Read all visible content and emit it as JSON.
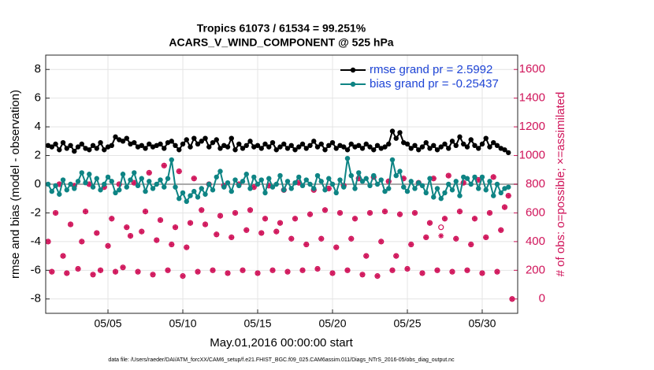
{
  "chart_data": {
    "type": "line",
    "title": "Tropics 61073 / 61534 = 99.251%",
    "subtitle": "ACARS_V_WIND_COMPONENT @ 525 hPa",
    "x_label": "May.01,2016 00:00:00 start",
    "y_label": "rmse and bias (model - observation)",
    "y2_label": "# of obs: o=possible; ×=assimilated",
    "footnote": "data file: /Users/raeder/DAI/ATM_forcXX/CAM6_setup/f.e21.FHIST_BGC.f09_025.CAM6assim.011/Diags_NTrS_2016-05/obs_diag_output.nc",
    "xlim": [
      0.84,
      32.37
    ],
    "xticks": [
      {
        "value": 5,
        "label": "05/05"
      },
      {
        "value": 10,
        "label": "05/10"
      },
      {
        "value": 15,
        "label": "05/15"
      },
      {
        "value": 20,
        "label": "05/20"
      },
      {
        "value": 25,
        "label": "05/25"
      },
      {
        "value": 30,
        "label": "05/30"
      }
    ],
    "ylim": [
      -9,
      9
    ],
    "yticks": [
      -8,
      -6,
      -4,
      -2,
      0,
      2,
      4,
      6,
      8
    ],
    "y2lim": [
      -100,
      1700
    ],
    "y2ticks": [
      0,
      200,
      400,
      600,
      800,
      1000,
      1200,
      1400,
      1600
    ],
    "grid": true,
    "legend": "northeast",
    "legend_text_color": "#1f45d6",
    "zero_line_color": "#aaaaaa",
    "y2_color": "#d0145a",
    "x": [
      1,
      1.25,
      1.5,
      1.75,
      2,
      2.25,
      2.5,
      2.75,
      3,
      3.25,
      3.5,
      3.75,
      4,
      4.25,
      4.5,
      4.75,
      5,
      5.25,
      5.5,
      5.75,
      6,
      6.25,
      6.5,
      6.75,
      7,
      7.25,
      7.5,
      7.75,
      8,
      8.25,
      8.5,
      8.75,
      9,
      9.25,
      9.5,
      9.75,
      10,
      10.25,
      10.5,
      10.75,
      11,
      11.25,
      11.5,
      11.75,
      12,
      12.25,
      12.5,
      12.75,
      13,
      13.25,
      13.5,
      13.75,
      14,
      14.25,
      14.5,
      14.75,
      15,
      15.25,
      15.5,
      15.75,
      16,
      16.25,
      16.5,
      16.75,
      17,
      17.25,
      17.5,
      17.75,
      18,
      18.25,
      18.5,
      18.75,
      19,
      19.25,
      19.5,
      19.75,
      20,
      20.25,
      20.5,
      20.75,
      21,
      21.25,
      21.5,
      21.75,
      22,
      22.25,
      22.5,
      22.75,
      23,
      23.25,
      23.5,
      23.75,
      24,
      24.25,
      24.5,
      24.75,
      25,
      25.25,
      25.5,
      25.75,
      26,
      26.25,
      26.5,
      26.75,
      27,
      27.25,
      27.5,
      27.75,
      28,
      28.25,
      28.5,
      28.75,
      29,
      29.25,
      29.5,
      29.75,
      30,
      30.25,
      30.5,
      30.75,
      31,
      31.25,
      31.5,
      31.75,
      32
    ],
    "series": [
      {
        "name": "rmse grand pr = 2.5992",
        "color": "#000000",
        "marker": "dot",
        "values": [
          2.7,
          2.6,
          2.8,
          2.4,
          2.9,
          2.5,
          2.7,
          2.3,
          2.6,
          2.8,
          2.5,
          2.4,
          2.7,
          2.5,
          2.9,
          2.4,
          2.6,
          2.7,
          3.3,
          3.1,
          3.0,
          3.2,
          2.8,
          2.9,
          2.6,
          2.7,
          2.5,
          2.8,
          2.6,
          2.7,
          2.8,
          2.5,
          2.9,
          3.0,
          2.7,
          2.4,
          2.8,
          3.1,
          2.6,
          3.2,
          2.8,
          3.0,
          3.2,
          2.6,
          2.9,
          3.1,
          2.5,
          2.7,
          2.6,
          3.2,
          2.4,
          2.8,
          2.5,
          2.7,
          3.0,
          2.6,
          2.7,
          2.5,
          2.8,
          2.6,
          2.9,
          2.4,
          2.6,
          2.8,
          2.5,
          2.7,
          2.4,
          2.6,
          2.8,
          2.5,
          2.7,
          3.0,
          2.6,
          2.8,
          2.4,
          2.7,
          2.9,
          2.5,
          2.7,
          2.6,
          2.4,
          2.8,
          2.6,
          2.7,
          2.5,
          2.8,
          2.6,
          2.4,
          2.7,
          2.5,
          2.6,
          2.8,
          3.7,
          3.2,
          3.6,
          2.9,
          2.8,
          2.5,
          2.7,
          2.4,
          2.6,
          2.9,
          2.5,
          2.7,
          2.4,
          2.6,
          2.8,
          2.5,
          3.0,
          2.7,
          3.3,
          2.8,
          2.6,
          3.1,
          2.7,
          2.5,
          2.8,
          3.2,
          2.6,
          2.9,
          2.7,
          2.5,
          2.4,
          2.2,
          null
        ]
      },
      {
        "name": "bias grand pr = -0.25437",
        "color": "#0e8484",
        "marker": "dot",
        "values": [
          0.0,
          -0.5,
          -0.1,
          -0.7,
          0.3,
          -0.4,
          0.0,
          -0.3,
          0.2,
          0.8,
          0.1,
          0.7,
          -0.2,
          0.4,
          -0.4,
          0.0,
          0.5,
          0.2,
          -0.6,
          -0.4,
          0.7,
          -0.2,
          0.3,
          0.8,
          -0.1,
          0.4,
          -0.5,
          0.2,
          -0.3,
          0.0,
          0.3,
          -0.2,
          0.4,
          1.7,
          -0.2,
          -1.0,
          -0.6,
          -1.2,
          -0.8,
          -0.5,
          -0.9,
          -0.3,
          -0.7,
          0.0,
          -0.4,
          0.5,
          0.9,
          -0.2,
          0.1,
          -0.5,
          0.3,
          -0.1,
          0.2,
          0.7,
          -0.3,
          0.5,
          0.0,
          0.3,
          -0.6,
          0.4,
          -0.2,
          0.0,
          0.6,
          -0.4,
          0.2,
          -0.3,
          0.1,
          0.5,
          -0.1,
          0.3,
          0.0,
          -0.3,
          0.6,
          0.2,
          -0.4,
          0.4,
          0.0,
          -0.6,
          0.3,
          -0.2,
          1.8,
          0.6,
          -0.3,
          0.8,
          0.2,
          0.4,
          -0.1,
          0.6,
          0.0,
          0.3,
          -0.5,
          -0.3,
          1.7,
          0.6,
          0.9,
          -0.2,
          -0.5,
          0.2,
          -0.3,
          0.1,
          -0.1,
          -0.6,
          0.4,
          -0.9,
          -0.3,
          -1.0,
          -0.6,
          0.0,
          -0.4,
          0.2,
          -0.8,
          0.5,
          0.4,
          0.0,
          0.5,
          -0.3,
          0.5,
          -0.4,
          0.2,
          -0.8,
          0.0,
          -0.6,
          -0.3,
          -0.2,
          null
        ]
      },
      {
        "color": "#d0145a",
        "marker": "circle",
        "axis": "y2",
        "values": [
          400,
          190,
          600,
          800,
          300,
          180,
          520,
          790,
          210,
          400,
          610,
          800,
          170,
          460,
          200,
          780,
          370,
          560,
          190,
          800,
          220,
          500,
          440,
          810,
          190,
          470,
          610,
          880,
          170,
          410,
          550,
          930,
          200,
          380,
          500,
          890,
          160,
          360,
          530,
          840,
          190,
          620,
          520,
          800,
          200,
          450,
          580,
          790,
          180,
          430,
          600,
          800,
          200,
          480,
          620,
          780,
          180,
          460,
          560,
          790,
          200,
          470,
          530,
          760,
          190,
          420,
          560,
          810,
          200,
          380,
          590,
          760,
          210,
          420,
          620,
          770,
          180,
          360,
          600,
          790,
          200,
          420,
          560,
          840,
          170,
          300,
          600,
          850,
          160,
          400,
          610,
          820,
          200,
          300,
          590,
          840,
          210,
          380,
          600,
          810,
          180,
          430,
          530,
          840,
          200,
          500,
          560,
          860,
          190,
          420,
          610,
          810,
          200,
          380,
          560,
          830,
          180,
          430,
          600,
          850,
          190,
          480,
          640,
          720,
          0
        ]
      },
      {
        "color": "#d0145a",
        "marker": "star",
        "axis": "y2",
        "values": [
          400,
          190,
          600,
          800,
          300,
          180,
          520,
          790,
          210,
          400,
          610,
          800,
          170,
          460,
          200,
          780,
          370,
          560,
          190,
          800,
          220,
          500,
          440,
          810,
          190,
          470,
          610,
          880,
          170,
          410,
          550,
          930,
          200,
          380,
          500,
          890,
          160,
          360,
          530,
          840,
          190,
          620,
          520,
          800,
          200,
          450,
          580,
          790,
          180,
          430,
          600,
          800,
          200,
          480,
          620,
          780,
          180,
          460,
          560,
          790,
          200,
          470,
          530,
          760,
          190,
          420,
          560,
          810,
          200,
          380,
          590,
          760,
          210,
          420,
          620,
          770,
          180,
          360,
          600,
          790,
          200,
          420,
          560,
          840,
          170,
          300,
          600,
          850,
          160,
          400,
          610,
          820,
          200,
          300,
          590,
          840,
          210,
          380,
          600,
          810,
          180,
          430,
          530,
          840,
          200,
          440,
          560,
          860,
          190,
          420,
          610,
          810,
          200,
          380,
          560,
          830,
          180,
          430,
          600,
          850,
          190,
          480,
          640,
          720,
          0
        ]
      }
    ]
  }
}
